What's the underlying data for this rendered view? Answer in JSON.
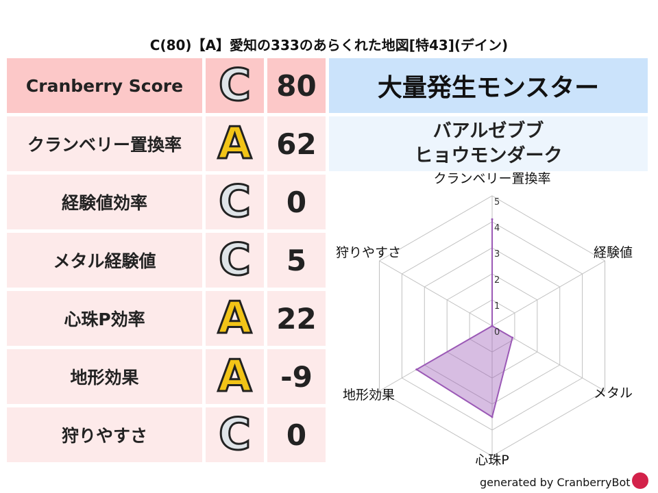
{
  "title": "C(80)【A】愛知の333のあらくれた地図[特43](デイン)",
  "header": {
    "label": "Cranberry Score",
    "grade": "C",
    "value": "80"
  },
  "rows": [
    {
      "label": "クランベリー置換率",
      "grade": "A",
      "value": "62"
    },
    {
      "label": "経験値効率",
      "grade": "C",
      "value": "0"
    },
    {
      "label": "メタル経験値",
      "grade": "C",
      "value": "5"
    },
    {
      "label": "心珠P効率",
      "grade": "A",
      "value": "22"
    },
    {
      "label": "地形効果",
      "grade": "A",
      "value": "-9"
    },
    {
      "label": "狩りやすさ",
      "grade": "C",
      "value": "0"
    }
  ],
  "monster": {
    "heading": "大量発生モンスター",
    "names": [
      "バアルゼブブ",
      "ヒョウモンダーク"
    ]
  },
  "footer": "generated by CranberryBot",
  "colors": {
    "fill": "#9b59b6",
    "grid": "#c0c0c0",
    "header_bg": "#fcc8c8",
    "row_bg": "#fdeaea",
    "monster_bg": "#cbe3fb"
  },
  "chart_data": {
    "type": "radar",
    "axes": [
      "クランベリー置換率",
      "経験値",
      "メタル",
      "心珠P",
      "地形効果",
      "狩りやすさ"
    ],
    "values": [
      4.1,
      0,
      0.9,
      3.5,
      3.35,
      0
    ],
    "range": [
      0,
      5
    ],
    "ticks": [
      "0",
      "1",
      "2",
      "3",
      "4",
      "5"
    ]
  }
}
